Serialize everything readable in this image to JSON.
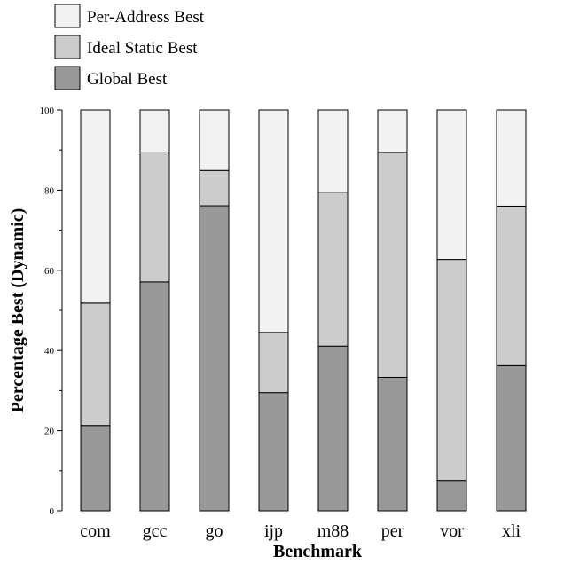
{
  "chart_data": {
    "type": "bar",
    "stacked": true,
    "categories": [
      "com",
      "gcc",
      "go",
      "ijp",
      "m88",
      "per",
      "vor",
      "xli"
    ],
    "series": [
      {
        "name": "Global Best",
        "color": "#999999",
        "values": [
          21.3,
          57.1,
          76.1,
          29.5,
          41.1,
          33.3,
          7.6,
          36.2
        ]
      },
      {
        "name": "Ideal Static Best",
        "color": "#cccccc",
        "values": [
          30.5,
          32.2,
          8.8,
          15.0,
          38.4,
          56.1,
          55.1,
          39.8
        ]
      },
      {
        "name": "Per-Address Best",
        "color": "#f2f2f2",
        "values": [
          48.2,
          10.7,
          15.1,
          55.5,
          20.5,
          10.6,
          37.3,
          24.0
        ]
      }
    ],
    "legend_order": [
      "Per-Address Best",
      "Ideal Static Best",
      "Global Best"
    ],
    "legend_placement": "top-left",
    "xlabel": "Benchmark",
    "ylabel": "Percentage Best (Dynamic)",
    "ylim": [
      0,
      100
    ],
    "yticks": [
      0,
      20,
      40,
      60,
      80,
      100
    ],
    "grid": false
  }
}
